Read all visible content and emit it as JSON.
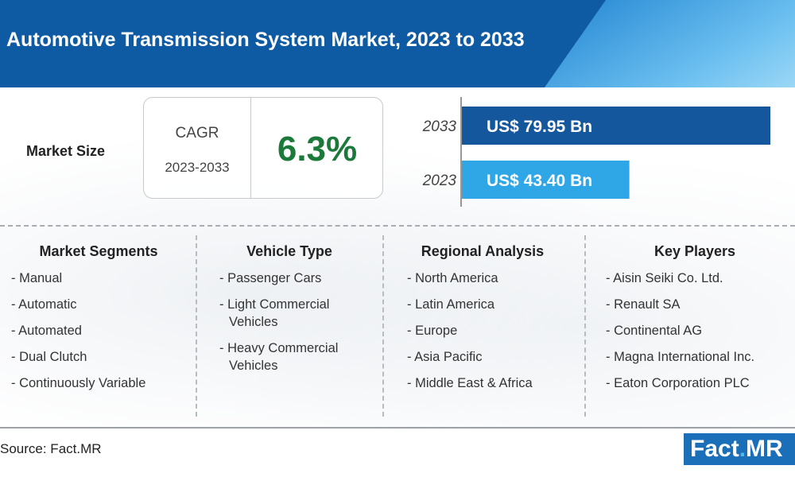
{
  "header": {
    "title": "Automotive Transmission System Market, 2023 to 2033"
  },
  "market_size": {
    "label": "Market Size",
    "cagr_label": "CAGR",
    "cagr_period": "2023-2033",
    "cagr_value": "6.3%"
  },
  "chart_data": {
    "type": "bar",
    "categories": [
      "2033",
      "2023"
    ],
    "values": [
      79.95,
      43.4
    ],
    "data_labels": [
      "US$ 79.95 Bn",
      "US$ 43.40 Bn"
    ],
    "colors": [
      "#14579c",
      "#2fa6e6"
    ],
    "title": "",
    "xlabel": "",
    "ylabel": "",
    "xlim": [
      0,
      82
    ]
  },
  "columns": [
    {
      "heading": "Market Segments",
      "items": [
        "- Manual",
        "- Automatic",
        "- Automated",
        "- Dual Clutch",
        "- Continuously Variable"
      ]
    },
    {
      "heading": "Vehicle Type",
      "items": [
        "- Passenger Cars",
        "- Light Commercial Vehicles",
        "- Heavy Commercial Vehicles"
      ]
    },
    {
      "heading": "Regional Analysis",
      "items": [
        "- North America",
        "- Latin America",
        "- Europe",
        "- Asia Pacific",
        "- Middle East & Africa"
      ]
    },
    {
      "heading": "Key Players",
      "items": [
        "- Aisin Seiki Co. Ltd.",
        "- Renault SA",
        "- Continental AG",
        "- Magna International Inc.",
        "- Eaton Corporation PLC"
      ]
    }
  ],
  "footer": {
    "source": "Source: Fact.MR",
    "logo_left": "Fact",
    "logo_dot": ".",
    "logo_right": "MR"
  },
  "colors": {
    "header_bg": "#0e5ba3",
    "cagr_green": "#1b7a3a"
  }
}
